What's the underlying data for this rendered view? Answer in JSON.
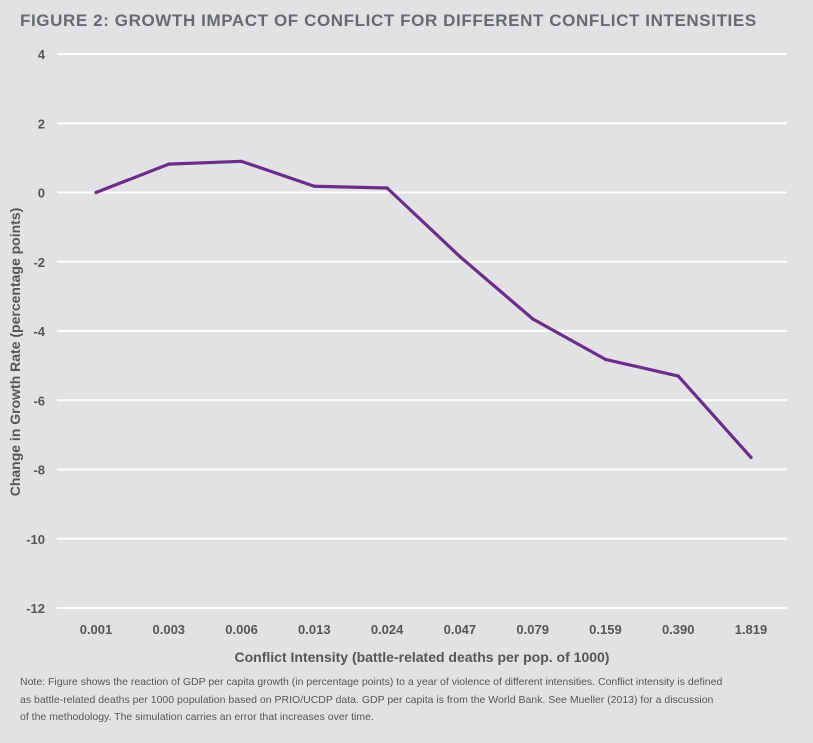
{
  "title": "FIGURE 2: GROWTH IMPACT OF CONFLICT FOR DIFFERENT CONFLICT INTENSITIES",
  "note_lines": [
    "Note: Figure shows the reaction of GDP per capita growth (in percentage points) to a year of violence of different intensities. Conflict intensity is defined",
    "as battle-related deaths per 1000 population based on PRIO/UCDP data. GDP per capita is from the World Bank. See Mueller (2013) for a discussion",
    "of the methodology. The simulation carries an error that increases over time."
  ],
  "colors": {
    "line": "#6b2d8a",
    "grid": "#ffffff",
    "text": "#555555",
    "background": "#e2e2e4"
  },
  "chart_data": {
    "type": "line",
    "title": "FIGURE 2: GROWTH IMPACT OF CONFLICT FOR DIFFERENT CONFLICT INTENSITIES",
    "xlabel": "Conflict Intensity (battle-related deaths per pop. of 1000)",
    "ylabel": "Change in Growth Rate  (percentage points)",
    "categories": [
      "0.001",
      "0.003",
      "0.006",
      "0.013",
      "0.024",
      "0.047",
      "0.079",
      "0.159",
      "0.390",
      "1.819"
    ],
    "values": [
      0.0,
      0.82,
      0.9,
      0.18,
      0.13,
      -1.85,
      -3.65,
      -4.82,
      -5.3,
      -7.65
    ],
    "ylim": [
      -12,
      4
    ],
    "yticks": [
      4,
      2,
      0,
      -2,
      -4,
      -6,
      -8,
      -10,
      -12
    ],
    "grid": true
  }
}
